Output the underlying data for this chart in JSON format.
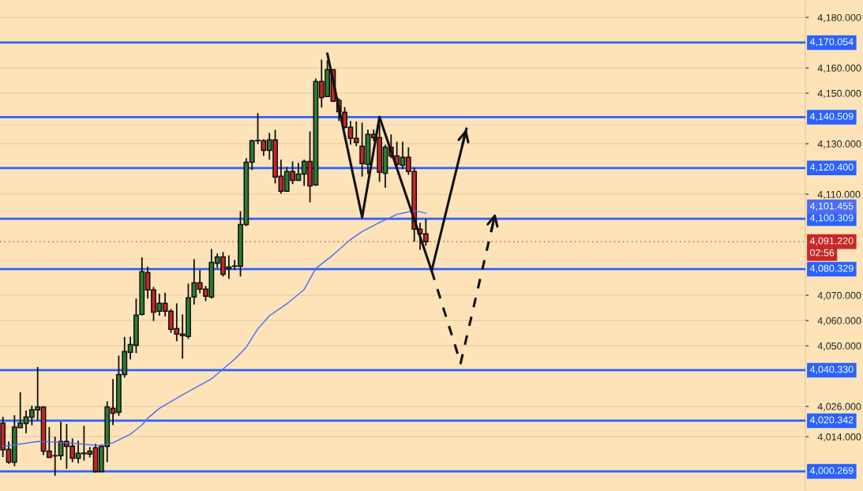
{
  "chart_data": {
    "type": "candlestick",
    "categories": [
      null,
      null,
      null,
      null,
      null,
      null,
      null,
      null,
      null,
      null,
      null,
      null,
      null,
      null,
      null,
      null,
      null,
      null,
      null,
      null,
      null,
      null,
      null,
      null,
      null,
      null,
      null,
      null,
      null,
      null,
      null,
      null,
      null,
      null,
      null,
      null,
      null,
      null,
      null,
      null,
      null,
      null,
      null,
      null,
      null,
      null,
      null,
      null,
      null,
      null,
      null,
      null,
      null,
      null,
      null,
      null,
      null,
      null,
      null,
      null,
      null,
      null,
      null,
      null,
      null,
      null,
      null,
      null,
      null,
      null,
      null,
      null,
      null,
      null,
      null,
      null,
      null,
      null,
      null,
      null,
      null,
      null,
      null,
      null,
      null,
      null,
      null,
      null,
      null,
      null,
      null,
      null,
      null,
      null,
      null,
      null,
      null,
      null,
      null,
      null,
      null,
      null,
      null,
      null,
      null,
      null,
      null,
      null,
      null,
      null,
      null,
      null,
      null,
      null,
      null,
      null,
      null,
      null,
      null,
      null,
      null,
      null,
      null,
      null,
      null,
      null,
      null,
      null,
      null,
      null,
      null,
      null,
      null,
      null,
      null,
      null,
      null,
      null,
      null
    ],
    "ohlc": [
      [
        4019.4,
        4021.9,
        4005.9,
        4008.8
      ],
      [
        4009.0,
        4012.1,
        4003.3,
        4003.9
      ],
      [
        4003.9,
        4022.5,
        4002.3,
        4017.8
      ],
      [
        4017.6,
        4031.6,
        4017.6,
        4019.4
      ],
      [
        4019.2,
        4024.4,
        4015.4,
        4021.8
      ],
      [
        4021.7,
        4026.3,
        4018.5,
        4024.7
      ],
      [
        4024.6,
        4041.6,
        4020.4,
        4025.8
      ],
      [
        4025.8,
        4025.8,
        4006.7,
        4008.3
      ],
      [
        4008.3,
        4017.8,
        4005.8,
        4005.8
      ],
      [
        4006.5,
        4014.0,
        3998.5,
        4006.4
      ],
      [
        4006.5,
        4019.9,
        4004.8,
        4012.1
      ],
      [
        4012.1,
        4019.0,
        4001.3,
        4010.2
      ],
      [
        4010.2,
        4013.3,
        4003.9,
        4005.5
      ],
      [
        4005.5,
        4012.4,
        4003.5,
        4007.4
      ],
      [
        4007.3,
        4018.3,
        4004.5,
        4007.5
      ],
      [
        4007.1,
        4009.9,
        4005.8,
        4008.3
      ],
      [
        4009.6,
        4011.2,
        3999.8,
        4000.2
      ],
      [
        4000.2,
        4011.0,
        4000.0,
        4010.2
      ],
      [
        4010.2,
        4028.0,
        4003.9,
        4025.8
      ],
      [
        4025.2,
        4036.8,
        4018.6,
        4023.3
      ],
      [
        4023.7,
        4046.1,
        4022.3,
        4038.6
      ],
      [
        4038.6,
        4053.5,
        4037.4,
        4047.7
      ],
      [
        4047.4,
        4053.6,
        4044.6,
        4050.5
      ],
      [
        4050.2,
        4068.7,
        4047.1,
        4062.1
      ],
      [
        4062.4,
        4085.0,
        4062.0,
        4079.3
      ],
      [
        4079.0,
        4081.3,
        4068.7,
        4072.1
      ],
      [
        4072.1,
        4073.3,
        4059.8,
        4063.3
      ],
      [
        4063.7,
        4070.6,
        4061.9,
        4066.8
      ],
      [
        4066.8,
        4071.0,
        4061.6,
        4063.7
      ],
      [
        4063.7,
        4064.6,
        4055.1,
        4056.5
      ],
      [
        4056.8,
        4066.8,
        4051.8,
        4054.6
      ],
      [
        4054.6,
        4062.4,
        4044.9,
        4054.0
      ],
      [
        4053.7,
        4074.6,
        4052.7,
        4069.0
      ],
      [
        4069.3,
        4084.3,
        4066.3,
        4074.9
      ],
      [
        4074.9,
        4079.9,
        4070.8,
        4072.4
      ],
      [
        4072.4,
        4073.7,
        4067.7,
        4069.6
      ],
      [
        4069.3,
        4088.3,
        4068.7,
        4083.0
      ],
      [
        4082.7,
        4086.5,
        4080.8,
        4085.2
      ],
      [
        4085.2,
        4087.1,
        4077.4,
        4078.3
      ],
      [
        4080.5,
        4085.8,
        4076.5,
        4081.2
      ],
      [
        4081.5,
        4084.0,
        4080.0,
        4081.6
      ],
      [
        4081.5,
        4103.3,
        4077.4,
        4098.0
      ],
      [
        4098.0,
        4124.3,
        4097.4,
        4122.7
      ],
      [
        4122.7,
        4131.5,
        4119.6,
        4131.2
      ],
      [
        4131.2,
        4142.1,
        4129.9,
        4131.3
      ],
      [
        4131.2,
        4131.8,
        4125.2,
        4127.4
      ],
      [
        4127.4,
        4134.3,
        4123.7,
        4131.5
      ],
      [
        4131.5,
        4135.5,
        4114.3,
        4116.8
      ],
      [
        4117.1,
        4123.7,
        4110.2,
        4111.2
      ],
      [
        4111.2,
        4120.8,
        4111.2,
        4119.0
      ],
      [
        4119.0,
        4123.0,
        4114.0,
        4115.5
      ],
      [
        4115.5,
        4122.4,
        4115.3,
        4118.0
      ],
      [
        4118.0,
        4123.7,
        4113.3,
        4123.0
      ],
      [
        4123.0,
        4134.9,
        4106.8,
        4113.3
      ],
      [
        4113.7,
        4155.8,
        4113.3,
        4154.6
      ],
      [
        4154.6,
        4163.3,
        4144.3,
        4148.3
      ],
      [
        4148.7,
        4163.0,
        4148.7,
        4159.3
      ],
      [
        4159.3,
        4159.3,
        4146.5,
        4146.8
      ],
      [
        4147.1,
        4148.0,
        4139.0,
        4142.7
      ],
      [
        4142.4,
        4144.5,
        4136.0,
        4136.5
      ],
      [
        4136.5,
        4139.0,
        4129.6,
        4132.1
      ],
      [
        4132.1,
        4138.8,
        4129.0,
        4130.5
      ],
      [
        4129.0,
        4138.3,
        4117.0,
        4122.1
      ],
      [
        4121.8,
        4135.6,
        4118.0,
        4133.7
      ],
      [
        4133.7,
        4135.6,
        4131.0,
        4132.4
      ],
      [
        4132.4,
        4138.0,
        4114.9,
        4118.7
      ],
      [
        4118.3,
        4129.6,
        4112.6,
        4128.6
      ],
      [
        4128.6,
        4133.7,
        4124.3,
        4125.2
      ],
      [
        4125.2,
        4130.8,
        4120.5,
        4121.8
      ],
      [
        4121.5,
        4130.8,
        4119.9,
        4124.6
      ],
      [
        4124.6,
        4128.6,
        4117.7,
        4119.0
      ],
      [
        4119.0,
        4120.5,
        4091.2,
        4096.2
      ],
      [
        4096.2,
        4098.7,
        4088.0,
        4094.3
      ],
      [
        4094.3,
        4100.2,
        4089.6,
        4091.22
      ],
      null,
      null,
      null,
      null,
      null,
      null,
      null,
      null,
      null,
      null,
      null,
      null,
      null,
      null,
      null,
      null,
      null,
      null,
      null,
      null,
      null,
      null,
      null,
      null,
      null,
      null,
      null,
      null,
      null,
      null,
      null,
      null,
      null,
      null,
      null,
      null,
      null,
      null,
      null,
      null,
      null,
      null,
      null,
      null,
      null,
      null,
      null,
      null,
      null,
      null,
      null,
      null,
      null,
      null,
      null,
      null,
      null,
      null,
      null,
      null,
      null,
      null,
      null,
      null,
      null
    ],
    "series": [
      {
        "type": "line",
        "color": "#4a6cf7",
        "values": [
          4010.1,
          null,
          null,
          null,
          null,
          null,
          4012.1,
          null,
          4012.0,
          null,
          null,
          4011.6,
          null,
          null,
          null,
          4010.8,
          null,
          4010.5,
          null,
          4011.6,
          null,
          null,
          4015.0,
          null,
          4018.6,
          4021.3,
          null,
          4025.2,
          null,
          null,
          null,
          4030.6,
          null,
          null,
          null,
          null,
          4036.9,
          null,
          4040.8,
          null,
          4044.7,
          null,
          4049.4,
          null,
          4056.7,
          null,
          4061.9,
          null,
          null,
          4066.6,
          null,
          null,
          4072.3,
          null,
          4080.6,
          null,
          null,
          4086.0,
          null,
          null,
          4092.1,
          null,
          4095.2,
          null,
          null,
          4098.8,
          null,
          null,
          4102.0,
          null,
          null,
          4103.5,
          null,
          4102.5,
          null,
          null,
          null,
          null,
          null,
          null,
          null,
          null,
          null,
          null,
          null,
          null,
          null,
          null,
          null,
          null,
          null,
          null,
          null,
          null,
          null,
          null,
          null,
          null,
          null,
          null,
          null,
          null,
          null,
          null,
          null,
          null,
          null,
          null,
          null,
          null,
          null,
          null,
          null,
          null,
          null,
          null,
          null,
          null,
          null,
          null,
          null,
          null,
          null,
          null,
          null,
          null,
          null,
          null,
          null,
          null,
          null,
          null,
          null,
          null,
          null,
          null,
          null,
          null,
          null
        ]
      },
      {
        "type": "line",
        "color": "#111111",
        "line_style": "solid",
        "values": [
          null,
          null,
          null,
          null,
          null,
          null,
          null,
          null,
          null,
          null,
          null,
          null,
          null,
          null,
          null,
          null,
          null,
          null,
          null,
          null,
          null,
          null,
          null,
          null,
          null,
          null,
          null,
          null,
          null,
          null,
          null,
          null,
          null,
          null,
          null,
          null,
          null,
          null,
          null,
          null,
          null,
          null,
          null,
          null,
          null,
          null,
          null,
          null,
          null,
          null,
          null,
          null,
          null,
          null,
          null,
          null,
          4165.6,
          null,
          null,
          null,
          null,
          null,
          4100.9,
          null,
          null,
          4140.6,
          null,
          null,
          null,
          null,
          null,
          null,
          null,
          null,
          4079.7,
          null,
          null,
          null,
          null,
          null,
          4135.9,
          null,
          null,
          null,
          null,
          null,
          null,
          null,
          null,
          null,
          null,
          null,
          null,
          null,
          null,
          null,
          null,
          null,
          null,
          null,
          null,
          null,
          null,
          null,
          null,
          null,
          null,
          null,
          null,
          null,
          null,
          null,
          null,
          null,
          null,
          null,
          null,
          null,
          null,
          null,
          null,
          null,
          null,
          null,
          null,
          null,
          null,
          null,
          null,
          null,
          null,
          null,
          null,
          null,
          null,
          null,
          null,
          null,
          null
        ]
      },
      {
        "type": "line",
        "color": "#111111",
        "line_style": "dashed",
        "values": [
          null,
          null,
          null,
          null,
          null,
          null,
          null,
          null,
          null,
          null,
          null,
          null,
          null,
          null,
          null,
          null,
          null,
          null,
          null,
          null,
          null,
          null,
          null,
          null,
          null,
          null,
          null,
          null,
          null,
          null,
          null,
          null,
          null,
          null,
          null,
          null,
          null,
          null,
          null,
          null,
          null,
          null,
          null,
          null,
          null,
          null,
          null,
          null,
          null,
          null,
          null,
          null,
          null,
          null,
          null,
          null,
          null,
          null,
          null,
          null,
          null,
          null,
          null,
          null,
          null,
          null,
          null,
          null,
          null,
          null,
          null,
          null,
          null,
          null,
          4079.7,
          null,
          null,
          null,
          null,
          4043.1,
          null,
          null,
          null,
          null,
          null,
          4102.5,
          null,
          null,
          null,
          null,
          null,
          null,
          null,
          null,
          null,
          null,
          null,
          null,
          null,
          null,
          null,
          null,
          null,
          null,
          null,
          null,
          null,
          null,
          null,
          null,
          null,
          null,
          null,
          null,
          null,
          null,
          null,
          null,
          null,
          null,
          null,
          null,
          null,
          null,
          null,
          null,
          null,
          null,
          null,
          null,
          null,
          null,
          null,
          null,
          null,
          null,
          null,
          null,
          null
        ]
      }
    ],
    "ylim": [
      3992.5,
      4186.9
    ],
    "yticks": [
      {
        "value": 4180,
        "label": "4,180.000"
      },
      {
        "value": 4160,
        "label": "4,160.000"
      },
      {
        "value": 4150,
        "label": "4,150.000"
      },
      {
        "value": 4130,
        "label": "4,130.000"
      },
      {
        "value": 4110,
        "label": "4,110.000"
      },
      {
        "value": 4070,
        "label": "4,070.000"
      },
      {
        "value": 4060,
        "label": "4,060.000"
      },
      {
        "value": 4050,
        "label": "4,050.000"
      },
      {
        "value": 4026,
        "label": "4,026.000"
      },
      {
        "value": 4014,
        "label": "4,014.000"
      }
    ],
    "ref_lines": [
      {
        "axis": "y",
        "value": 4170.054,
        "label": "4,170.054",
        "color": "#2962ff"
      },
      {
        "axis": "y",
        "value": 4140.509,
        "label": "4,140.509",
        "color": "#2962ff"
      },
      {
        "axis": "y",
        "value": 4120.4,
        "label": "4,120.400",
        "color": "#2962ff"
      },
      {
        "axis": "y",
        "value": 4100.309,
        "label": "4,100.309",
        "color": "#2962ff"
      },
      {
        "axis": "y",
        "value": 4091.22,
        "label": "4,091.220",
        "color": "#c62828",
        "line_style": "dotted"
      },
      {
        "axis": "y",
        "value": 4080.329,
        "label": "4,080.329",
        "color": "#2962ff"
      },
      {
        "axis": "y",
        "value": 4040.33,
        "label": "4,040.330",
        "color": "#2962ff"
      },
      {
        "axis": "y",
        "value": 4020.342,
        "label": "4,020.342",
        "color": "#2962ff"
      },
      {
        "axis": "y",
        "value": 4000.269,
        "label": "4,000.269",
        "color": "#2962ff"
      }
    ],
    "annotations": [
      "4,101.455",
      "02:56"
    ],
    "grid": "y",
    "tick_labels": "y"
  }
}
